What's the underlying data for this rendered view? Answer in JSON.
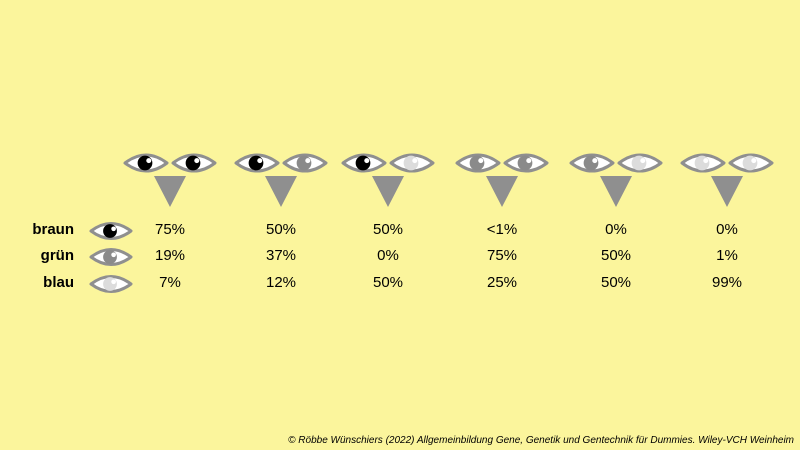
{
  "colors": {
    "background": "#fbf59c",
    "outline": "#8f8f8f",
    "braun": "#000000",
    "gruen": "#8a8a8a",
    "blau": "#dcdcdc",
    "arrow": "#8f8f8f"
  },
  "rows": [
    {
      "key": "braun",
      "label": "braun",
      "icon": "brown-eye-icon"
    },
    {
      "key": "gruen",
      "label": "grün",
      "icon": "green-eye-icon"
    },
    {
      "key": "blau",
      "label": "blau",
      "icon": "blue-eye-icon"
    }
  ],
  "combinations": [
    {
      "parents": [
        "braun",
        "braun"
      ],
      "braun": "75%",
      "gruen": "19%",
      "blau": "7%"
    },
    {
      "parents": [
        "braun",
        "gruen"
      ],
      "braun": "50%",
      "gruen": "37%",
      "blau": "12%"
    },
    {
      "parents": [
        "braun",
        "blau"
      ],
      "braun": "50%",
      "gruen": "0%",
      "blau": "50%"
    },
    {
      "parents": [
        "gruen",
        "gruen"
      ],
      "braun": "<1%",
      "gruen": "75%",
      "blau": "25%"
    },
    {
      "parents": [
        "gruen",
        "blau"
      ],
      "braun": "0%",
      "gruen": "50%",
      "blau": "50%"
    },
    {
      "parents": [
        "blau",
        "blau"
      ],
      "braun": "0%",
      "gruen": "1%",
      "blau": "99%"
    }
  ],
  "credit": "© Röbbe Wünschiers (2022) Allgemeinbildung Gene, Genetik und Gentechnik für Dummies. Wiley-VCH Weinheim"
}
